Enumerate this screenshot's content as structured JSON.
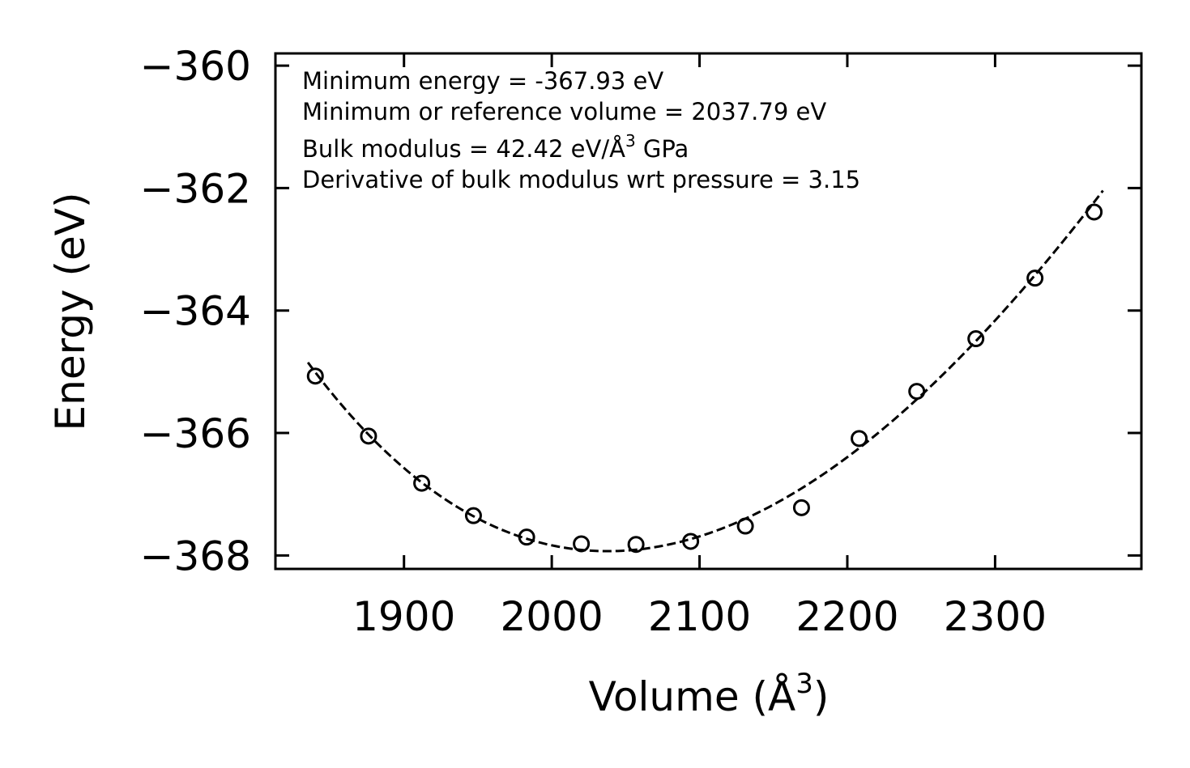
{
  "chart_data": {
    "type": "scatter",
    "xlabel_main": "Volume (Å",
    "xlabel_sup": "3",
    "xlabel_end": ")",
    "ylabel": "Energy (eV)",
    "xlim": [
      1813,
      2399
    ],
    "ylim": [
      -368.22,
      -359.8
    ],
    "xticks": [
      1900,
      2000,
      2100,
      2200,
      2300
    ],
    "xtick_labels": [
      "1900",
      "2000",
      "2100",
      "2200",
      "2300"
    ],
    "yticks": [
      -368,
      -366,
      -364,
      -362,
      -360
    ],
    "ytick_labels": [
      "−368",
      "−366",
      "−364",
      "−362",
      "−360"
    ],
    "annotations": [
      {
        "text": "Minimum energy = -367.93 eV"
      },
      {
        "text": "Minimum or reference volume = 2037.79 eV"
      },
      {
        "text": "Bulk modulus = 42.42 eV/Å",
        "sup": "3",
        "tail": " GPa"
      },
      {
        "text": "Derivative of bulk modulus wrt pressure = 3.15"
      }
    ],
    "series": [
      {
        "name": "data",
        "style": "open-circle",
        "x": [
          1840,
          1876,
          1912,
          1947,
          1983,
          2020,
          2057,
          2094,
          2131,
          2169,
          2208,
          2247,
          2287,
          2327,
          2367
        ],
        "y": [
          -365.07,
          -366.05,
          -366.82,
          -367.35,
          -367.7,
          -367.81,
          -367.82,
          -367.77,
          -367.52,
          -367.22,
          -366.09,
          -365.32,
          -364.46,
          -363.47,
          -362.39
        ]
      },
      {
        "name": "fit",
        "style": "dashed-line",
        "x_range": [
          1835,
          2373
        ],
        "E0": -367.93,
        "V0": 2037.79,
        "B0": 42.42,
        "B0_prime": 3.15
      }
    ]
  }
}
